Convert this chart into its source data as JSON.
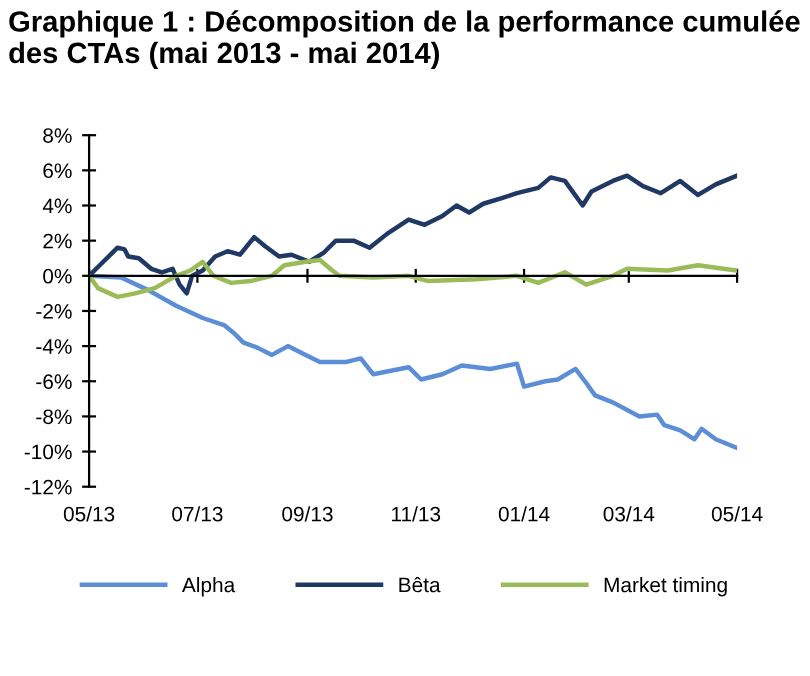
{
  "chart_data": {
    "type": "line",
    "title": "Graphique 1 : Décomposition de la performance cumulée des CTAs (mai 2013 - mai 2014)",
    "xlim": [
      "2013-05-01",
      "2014-05-01"
    ],
    "xticks": [
      {
        "value": "2013-05-01",
        "label": "05/13"
      },
      {
        "value": "2013-07-01",
        "label": "07/13"
      },
      {
        "value": "2013-09-01",
        "label": "09/13"
      },
      {
        "value": "2013-11-01",
        "label": "11/13"
      },
      {
        "value": "2014-01-01",
        "label": "01/14"
      },
      {
        "value": "2014-03-01",
        "label": "03/14"
      },
      {
        "value": "2014-05-01",
        "label": "05/14"
      }
    ],
    "ylim": [
      -12,
      8
    ],
    "yticks": [
      {
        "value": -12,
        "label": "-12%"
      },
      {
        "value": -10,
        "label": "-10%"
      },
      {
        "value": -8,
        "label": "-8%"
      },
      {
        "value": -6,
        "label": "-6%"
      },
      {
        "value": -4,
        "label": "-4%"
      },
      {
        "value": -2,
        "label": "-2%"
      },
      {
        "value": 0,
        "label": "0%"
      },
      {
        "value": 2,
        "label": "2%"
      },
      {
        "value": 4,
        "label": "4%"
      },
      {
        "value": 6,
        "label": "6%"
      },
      {
        "value": 8,
        "label": "8%"
      }
    ],
    "legend": "bottom",
    "marker": "none",
    "line_style": "solid",
    "series": [
      {
        "name": "Alpha",
        "color": "#5b8ed6",
        "x": [
          "2013-05-01",
          "2013-05-19",
          "2013-06-03",
          "2013-06-19",
          "2013-07-04",
          "2013-07-16",
          "2013-07-22",
          "2013-07-27",
          "2013-08-04",
          "2013-08-12",
          "2013-08-21",
          "2013-08-29",
          "2013-09-08",
          "2013-09-23",
          "2013-10-01",
          "2013-10-08",
          "2013-10-18",
          "2013-10-28",
          "2013-11-04",
          "2013-11-16",
          "2013-11-27",
          "2013-12-13",
          "2013-12-28",
          "2014-01-01",
          "2014-01-13",
          "2014-01-20",
          "2014-01-30",
          "2014-02-05",
          "2014-02-10",
          "2014-02-20",
          "2014-03-07",
          "2014-03-17",
          "2014-03-21",
          "2014-03-30",
          "2014-04-07",
          "2014-04-11",
          "2014-04-19",
          "2014-05-01"
        ],
        "values": [
          0,
          -0.1,
          -0.8,
          -1.7,
          -2.4,
          -2.8,
          -3.3,
          -3.8,
          -4.1,
          -4.5,
          -4.0,
          -4.4,
          -4.9,
          -4.9,
          -4.7,
          -5.6,
          -5.4,
          -5.2,
          -5.9,
          -5.6,
          -5.1,
          -5.3,
          -5.0,
          -6.3,
          -6.0,
          -5.9,
          -5.3,
          -6.1,
          -6.8,
          -7.2,
          -8.0,
          -7.9,
          -8.5,
          -8.8,
          -9.3,
          -8.7,
          -9.3,
          -9.8
        ]
      },
      {
        "name": "Bêta",
        "color": "#1f3864",
        "x": [
          "2013-05-01",
          "2013-05-07",
          "2013-05-17",
          "2013-05-21",
          "2013-05-23",
          "2013-05-29",
          "2013-06-05",
          "2013-06-11",
          "2013-06-17",
          "2013-06-21",
          "2013-06-25",
          "2013-06-28",
          "2013-07-04",
          "2013-07-11",
          "2013-07-18",
          "2013-07-25",
          "2013-08-02",
          "2013-08-08",
          "2013-08-16",
          "2013-08-23",
          "2013-09-02",
          "2013-09-10",
          "2013-09-17",
          "2013-09-27",
          "2013-10-06",
          "2013-10-16",
          "2013-10-28",
          "2013-11-06",
          "2013-11-16",
          "2013-11-24",
          "2013-12-01",
          "2013-12-09",
          "2013-12-19",
          "2013-12-28",
          "2014-01-09",
          "2014-01-16",
          "2014-01-24",
          "2014-02-03",
          "2014-02-08",
          "2014-02-20",
          "2014-02-28",
          "2014-03-09",
          "2014-03-19",
          "2014-03-30",
          "2014-04-09",
          "2014-04-19",
          "2014-05-01"
        ],
        "values": [
          0,
          0.6,
          1.6,
          1.5,
          1.1,
          1.0,
          0.4,
          0.2,
          0.4,
          -0.5,
          -1.0,
          0,
          0.3,
          1.1,
          1.4,
          1.2,
          2.2,
          1.7,
          1.1,
          1.2,
          0.8,
          1.3,
          2.0,
          2.0,
          1.6,
          2.4,
          3.2,
          2.9,
          3.4,
          4.0,
          3.6,
          4.1,
          4.4,
          4.7,
          5.0,
          5.6,
          5.4,
          4.0,
          4.8,
          5.4,
          5.7,
          5.1,
          4.7,
          5.4,
          4.6,
          5.2,
          5.7
        ]
      },
      {
        "name": "Market timing",
        "color": "#9bbb59",
        "x": [
          "2013-05-01",
          "2013-05-06",
          "2013-05-17",
          "2013-05-27",
          "2013-06-07",
          "2013-06-19",
          "2013-06-27",
          "2013-07-04",
          "2013-07-10",
          "2013-07-20",
          "2013-07-31",
          "2013-08-12",
          "2013-08-19",
          "2013-08-31",
          "2013-09-08",
          "2013-09-15",
          "2013-09-19",
          "2013-10-08",
          "2013-10-28",
          "2013-11-08",
          "2013-12-05",
          "2013-12-28",
          "2014-01-09",
          "2014-01-24",
          "2014-02-05",
          "2014-02-20",
          "2014-02-28",
          "2014-03-23",
          "2014-04-09",
          "2014-05-01"
        ],
        "values": [
          0,
          -0.7,
          -1.2,
          -1.0,
          -0.7,
          0,
          0.3,
          0.8,
          0,
          -0.4,
          -0.3,
          0,
          0.6,
          0.8,
          0.9,
          0.3,
          0,
          -0.1,
          0,
          -0.3,
          -0.2,
          0,
          -0.4,
          0.2,
          -0.5,
          0,
          0.4,
          0.3,
          0.6,
          0.3
        ]
      }
    ]
  }
}
